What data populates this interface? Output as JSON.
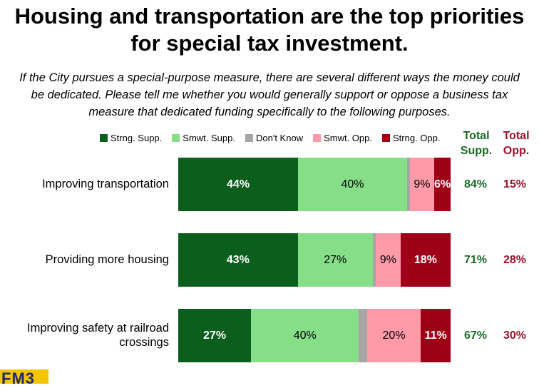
{
  "title": "Housing and transportation are the top priorities for special tax investment.",
  "subtitle": "If the City pursues a special-purpose measure, there are several different ways the money could be dedicated. Please tell me whether you would generally support or oppose a business tax measure that dedicated funding specifically to the following purposes.",
  "logo_text": "FM3",
  "chart_data": {
    "type": "bar",
    "orientation": "horizontal-stacked",
    "categories": [
      "Improving transportation",
      "Providing more housing",
      "Improving safety at railroad crossings"
    ],
    "series": [
      {
        "name": "Strng. Supp.",
        "color": "#0b5e1c",
        "values": [
          44,
          43,
          27
        ],
        "labels": [
          "44%",
          "43%",
          "27%"
        ]
      },
      {
        "name": "Smwt. Supp.",
        "color": "#86de88",
        "values": [
          40,
          27,
          40
        ],
        "labels": [
          "40%",
          "27%",
          "40%"
        ]
      },
      {
        "name": "Don't Know",
        "color": "#a6a6a6",
        "values": [
          1,
          1,
          3
        ],
        "labels": [
          "",
          "",
          ""
        ]
      },
      {
        "name": "Smwt. Opp.",
        "color": "#ff9aa8",
        "values": [
          9,
          9,
          20
        ],
        "labels": [
          "9%",
          "9%",
          "20%"
        ]
      },
      {
        "name": "Strng. Opp.",
        "color": "#9e0016",
        "values": [
          6,
          18,
          11
        ],
        "labels": [
          "6%",
          "18%",
          "11%"
        ]
      }
    ],
    "totals": {
      "support_header": "Total Supp.",
      "oppose_header": "Total Opp.",
      "support_color": "#1a6b25",
      "oppose_color": "#a0102a",
      "support": [
        "84%",
        "71%",
        "67%"
      ],
      "oppose": [
        "15%",
        "28%",
        "30%"
      ]
    },
    "xlim": [
      0,
      100
    ],
    "legend": "top"
  }
}
